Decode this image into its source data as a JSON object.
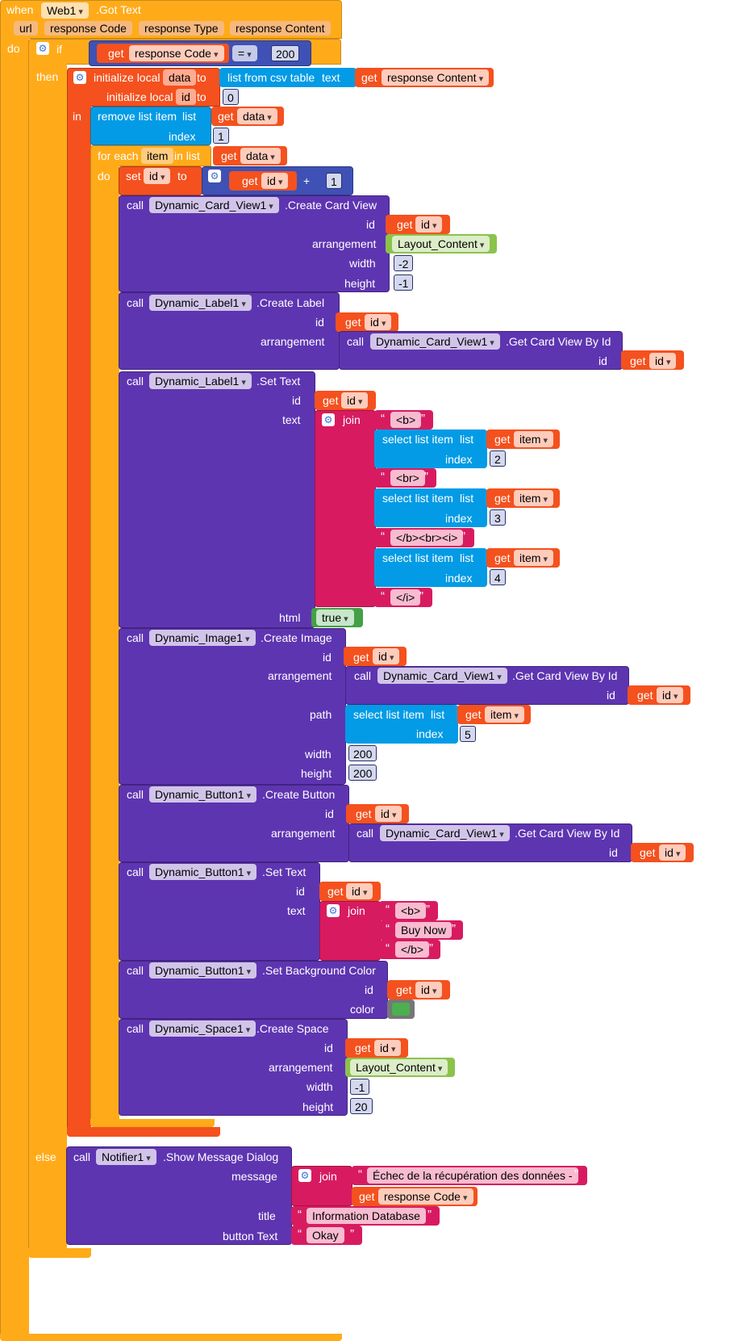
{
  "colors": {
    "event": "#ffab19",
    "control": "#ffab19",
    "variable": "#f4511e",
    "math": "#3f51b5",
    "list": "#039be5",
    "text": "#d81b60",
    "component": "#5e35b1",
    "logic": "#43a047",
    "lightgreen": "#8bc34a",
    "swatch": "#4caf50"
  },
  "event": {
    "when": "when",
    "component": "Web1",
    "name": ".Got Text",
    "params": [
      "url",
      "response Code",
      "response Type",
      "response Content"
    ],
    "do": "do"
  },
  "ifblock": {
    "if": "if",
    "then": "then",
    "else": "else",
    "get": "get",
    "var": "response Code",
    "op": "=",
    "value": "200"
  },
  "init": {
    "label": "initialize local",
    "var1": "data",
    "to": "to",
    "csv": "list from csv table",
    "csv_text": "text",
    "get": "get",
    "csv_var": "response Content",
    "var2": "id",
    "value2": "0",
    "in": "in"
  },
  "remove": {
    "label": "remove list item",
    "list": "list",
    "index": "index",
    "get": "get",
    "var": "data",
    "idx": "1"
  },
  "foreach": {
    "label": "for each",
    "var": "item",
    "inlist": "in list",
    "get": "get",
    "listvar": "data",
    "do": "do"
  },
  "setid": {
    "set": "set",
    "var": "id",
    "to": "to",
    "get": "get",
    "getvar": "id",
    "plus": "+",
    "num": "1"
  },
  "card": {
    "call": "call",
    "comp": "Dynamic_Card_View1",
    "method": ".Create Card View",
    "id": "id",
    "get": "get",
    "getvar": "id",
    "arrangement": "arrangement",
    "arr_val": "Layout_Content",
    "width": "width",
    "width_val": "-2",
    "height": "height",
    "height_val": "-1"
  },
  "label_create": {
    "call": "call",
    "comp": "Dynamic_Label1",
    "method": ".Create Label",
    "id": "id",
    "get": "get",
    "getvar": "id",
    "arrangement": "arrangement",
    "call2": "call",
    "comp2": "Dynamic_Card_View1",
    "method2": ".Get Card View By Id",
    "id2": "id",
    "get2": "get",
    "getvar2": "id"
  },
  "label_set": {
    "call": "call",
    "comp": "Dynamic_Label1",
    "method": ".Set Text",
    "id": "id",
    "get": "get",
    "getvar": "id",
    "text": "text",
    "join": "join",
    "t1": "<b>",
    "t2": "<br>",
    "t3": "</b><br><i>",
    "t4": "</i>",
    "sel": "select list item",
    "list": "list",
    "index": "index",
    "item": "item",
    "i1": "2",
    "i2": "3",
    "i3": "4",
    "html": "html",
    "html_val": "true"
  },
  "image": {
    "call": "call",
    "comp": "Dynamic_Image1",
    "method": ".Create Image",
    "id": "id",
    "get": "get",
    "getvar": "id",
    "arrangement": "arrangement",
    "call2": "call",
    "comp2": "Dynamic_Card_View1",
    "method2": ".Get Card View By Id",
    "id2": "id",
    "get2": "get",
    "getvar2": "id",
    "path": "path",
    "sel": "select list item",
    "list": "list",
    "index": "index",
    "item": "item",
    "idx": "5",
    "width": "width",
    "width_val": "200",
    "height": "height",
    "height_val": "200"
  },
  "button_create": {
    "call": "call",
    "comp": "Dynamic_Button1",
    "method": ".Create Button",
    "id": "id",
    "get": "get",
    "getvar": "id",
    "arrangement": "arrangement",
    "call2": "call",
    "comp2": "Dynamic_Card_View1",
    "method2": ".Get Card View By Id",
    "id2": "id",
    "get2": "get",
    "getvar2": "id"
  },
  "button_text": {
    "call": "call",
    "comp": "Dynamic_Button1",
    "method": ".Set Text",
    "id": "id",
    "get": "get",
    "getvar": "id",
    "text": "text",
    "join": "join",
    "t1": "<b>",
    "t2": "Buy Now",
    "t3": "</b>"
  },
  "button_bg": {
    "call": "call",
    "comp": "Dynamic_Button1",
    "method": ".Set Background Color",
    "id": "id",
    "get": "get",
    "getvar": "id",
    "color": "color"
  },
  "space": {
    "call": "call",
    "comp": "Dynamic_Space1",
    "method": ".Create Space",
    "id": "id",
    "get": "get",
    "getvar": "id",
    "arrangement": "arrangement",
    "arr_val": "Layout_Content",
    "width": "width",
    "width_val": "-1",
    "height": "height",
    "height_val": "20"
  },
  "notifier": {
    "call": "call",
    "comp": "Notifier1",
    "method": ".Show Message Dialog",
    "message": "message",
    "join": "join",
    "msg_text": "Échec de la récupération des données - ",
    "get": "get",
    "getvar": "response Code",
    "title": "title",
    "title_val": "Information Database",
    "button_text": "button Text",
    "button_val": "Okay"
  }
}
